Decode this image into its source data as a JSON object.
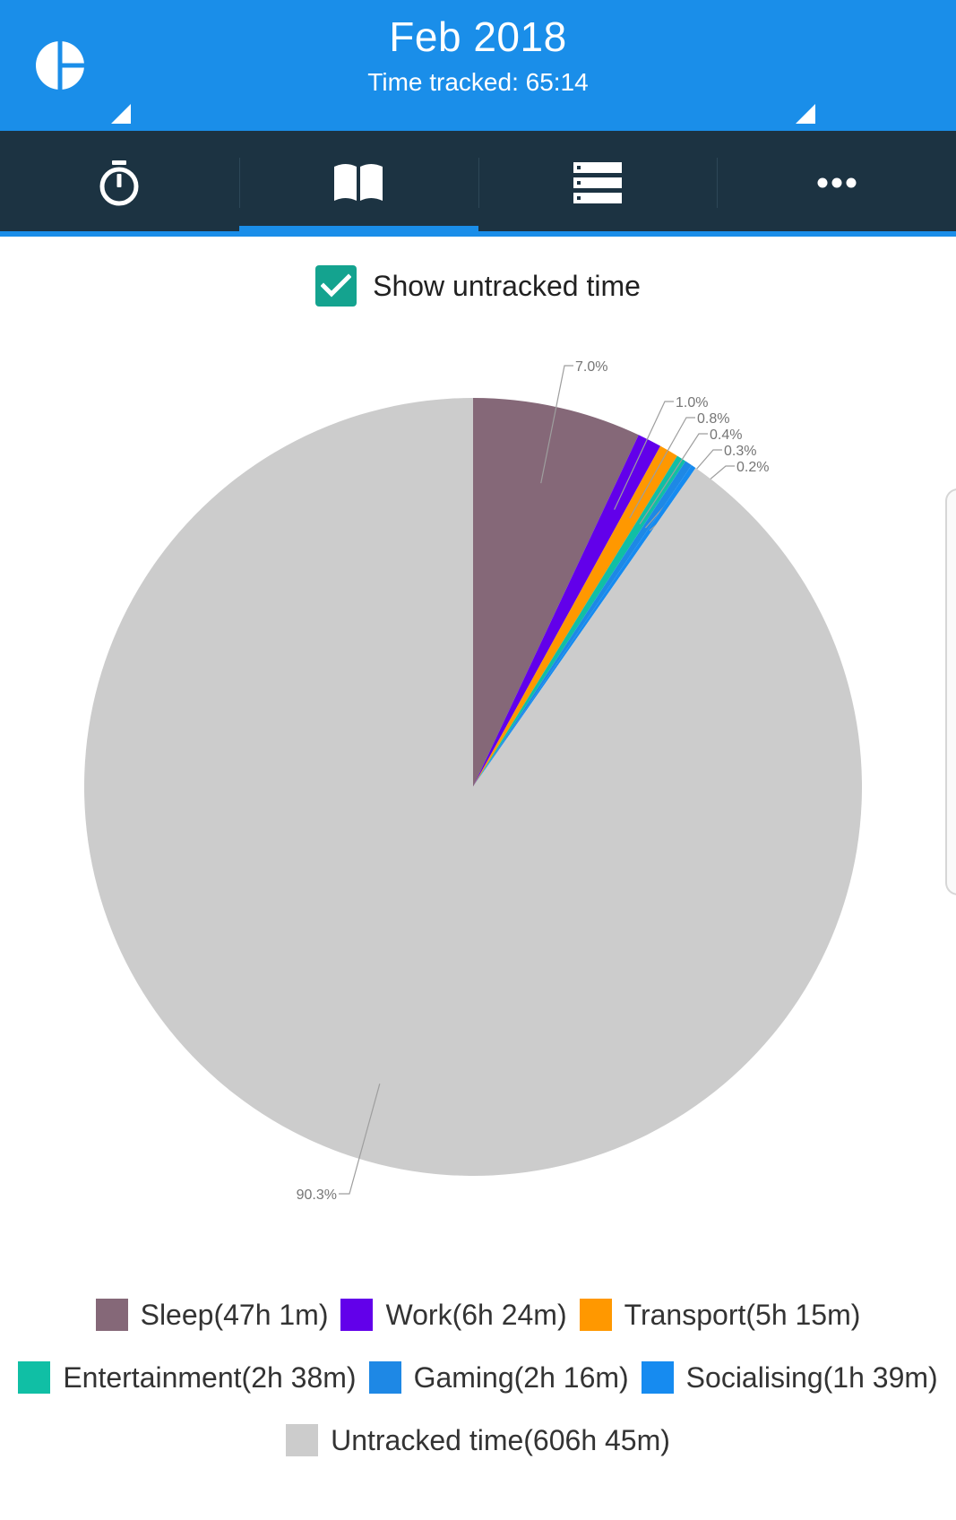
{
  "header": {
    "title": "Feb 2018",
    "subtitle": "Time tracked: 65:14",
    "background": "#1a8ee9"
  },
  "tabs": [
    {
      "icon": "stopwatch-icon",
      "active": false
    },
    {
      "icon": "open-book-icon",
      "active": true
    },
    {
      "icon": "list-icon",
      "active": false
    },
    {
      "icon": "more-dots-icon",
      "active": false
    }
  ],
  "toggle": {
    "label": "Show untracked time",
    "checked": true,
    "color": "#14a38f"
  },
  "chart_data": {
    "type": "pie",
    "start_angle_deg": 0,
    "direction": "clockwise",
    "slices": [
      {
        "label": "Sleep(47h 1m)",
        "pct": 7.0,
        "pct_label": "7.0%",
        "color": "#856878"
      },
      {
        "label": "Work(6h 24m)",
        "pct": 1.0,
        "pct_label": "1.0%",
        "color": "#6200ea"
      },
      {
        "label": "Transport(5h 15m)",
        "pct": 0.8,
        "pct_label": "0.8%",
        "color": "#ff9800"
      },
      {
        "label": "Entertainment(2h 38m)",
        "pct": 0.4,
        "pct_label": "0.4%",
        "color": "#10bfa5"
      },
      {
        "label": "Gaming(2h 16m)",
        "pct": 0.3,
        "pct_label": "0.3%",
        "color": "#1e88e5"
      },
      {
        "label": "Socialising(1h 39m)",
        "pct": 0.2,
        "pct_label": "0.2%",
        "color": "#168bf0"
      },
      {
        "label": "Untracked time(606h 45m)",
        "pct": 90.3,
        "pct_label": "90.3%",
        "color": "#cccccc"
      }
    ],
    "legend_position": "bottom"
  }
}
